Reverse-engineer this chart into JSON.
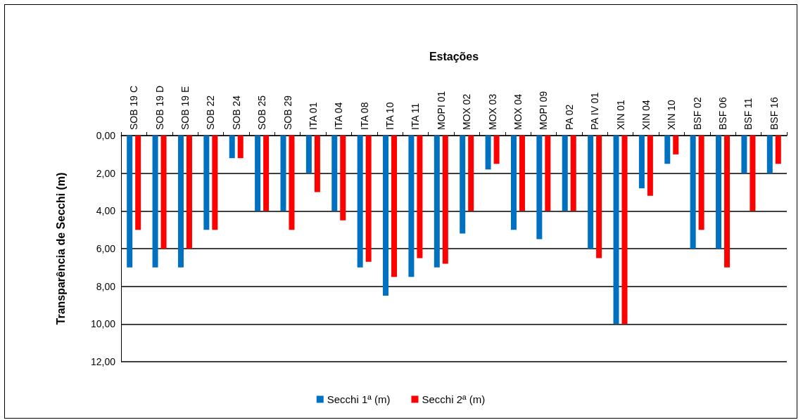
{
  "chart_data": {
    "type": "bar",
    "xlabel": "Estações",
    "ylabel": "Transparência de Secchi (m)",
    "categories": [
      "SOB 19 C",
      "SOB 19 D",
      "SOB 19 E",
      "SOB 22",
      "SOB 24",
      "SOB 25",
      "SOB 29",
      "ITA 01",
      "ITA 04",
      "ITA 08",
      "ITA 10",
      "ITA 11",
      "MOPI 01",
      "MOX 02",
      "MOX 03",
      "MOX 04",
      "MOPI 09",
      "PA 02",
      "PA IV 01",
      "XIN 01",
      "XIN 04",
      "XIN 10",
      "BSF 02",
      "BSF 06",
      "BSF 11",
      "BSF 16"
    ],
    "series": [
      {
        "name": "Secchi 1ª (m)",
        "color": "#0070c0",
        "values": [
          7,
          7,
          7,
          5,
          1.2,
          4,
          4,
          2,
          4,
          7,
          8.5,
          7.5,
          7,
          5.2,
          1.8,
          5,
          5.5,
          4,
          6,
          10,
          2.8,
          1.5,
          6,
          6,
          2,
          2
        ]
      },
      {
        "name": "Secchi 2ª (m)",
        "color": "#ff0000",
        "values": [
          5,
          6,
          6,
          5,
          1.2,
          4,
          5,
          3,
          4.5,
          6.7,
          7.5,
          6.5,
          6.8,
          4,
          1.5,
          4,
          4,
          4,
          6.5,
          10,
          3.2,
          1,
          5,
          7,
          4,
          1.5
        ]
      }
    ],
    "ylim": [
      12,
      0
    ],
    "yticks": [
      {
        "value": 0,
        "label": "0,00"
      },
      {
        "value": 2,
        "label": "2,00"
      },
      {
        "value": 4,
        "label": "4,00"
      },
      {
        "value": 6,
        "label": "6,00"
      },
      {
        "value": 8,
        "label": "8,00"
      },
      {
        "value": 10,
        "label": "10,00"
      },
      {
        "value": 12,
        "label": "12,00"
      }
    ],
    "grid": "y",
    "legend": "bottom"
  }
}
